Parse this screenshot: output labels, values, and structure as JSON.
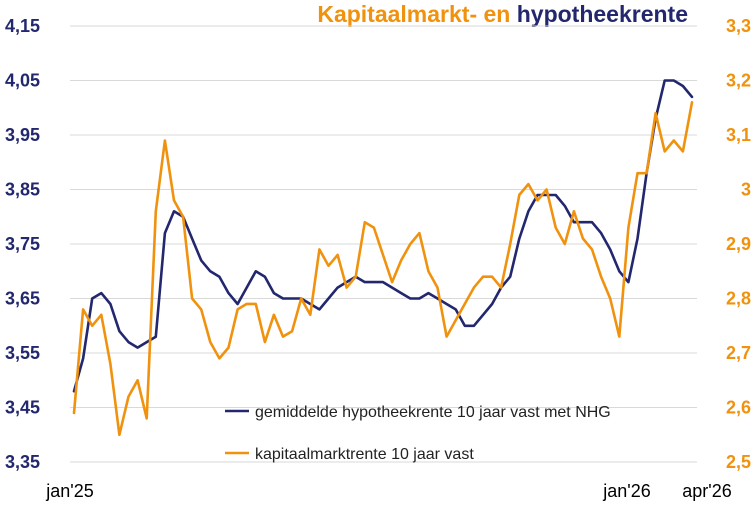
{
  "chart_data": {
    "type": "line",
    "title_parts": [
      "Kapitaalmarkt- en ",
      "hypotheekrente"
    ],
    "xlabel": "",
    "x_tick_labels": [
      "jan'25",
      "jan'26",
      "apr'26"
    ],
    "y_left": {
      "ylim": [
        3.35,
        4.15
      ],
      "ticks": [
        "3,35",
        "3,45",
        "3,55",
        "3,65",
        "3,75",
        "3,85",
        "3,95",
        "4,05",
        "4,15"
      ]
    },
    "y_right": {
      "ylim": [
        2.5,
        3.3
      ],
      "ticks": [
        "2,5",
        "2,6",
        "2,7",
        "2,8",
        "2,9",
        "3",
        "3,1",
        "3,2",
        "3,3"
      ]
    },
    "grid": "horizontal",
    "legend_position": "bottom-center",
    "colors": {
      "navy": "#22276e",
      "orange": "#f0920e",
      "grid": "#d9d9d9"
    },
    "series": [
      {
        "name": "gemiddelde hypotheekrente 10 jaar vast met NHG",
        "axis": "left",
        "color": "#22276e",
        "values": [
          3.48,
          3.54,
          3.65,
          3.66,
          3.64,
          3.59,
          3.57,
          3.56,
          3.57,
          3.58,
          3.77,
          3.81,
          3.8,
          3.76,
          3.72,
          3.7,
          3.69,
          3.66,
          3.64,
          3.67,
          3.7,
          3.69,
          3.66,
          3.65,
          3.65,
          3.65,
          3.64,
          3.63,
          3.65,
          3.67,
          3.68,
          3.69,
          3.68,
          3.68,
          3.68,
          3.67,
          3.66,
          3.65,
          3.65,
          3.66,
          3.65,
          3.64,
          3.63,
          3.6,
          3.6,
          3.62,
          3.64,
          3.67,
          3.69,
          3.76,
          3.81,
          3.84,
          3.84,
          3.84,
          3.82,
          3.79,
          3.79,
          3.79,
          3.77,
          3.74,
          3.7,
          3.68,
          3.76,
          3.88,
          3.98,
          4.05,
          4.05,
          4.04,
          4.02
        ]
      },
      {
        "name": "kapitaalmarktrente 10 jaar vast",
        "axis": "right",
        "color": "#f0920e",
        "values": [
          2.59,
          2.78,
          2.75,
          2.77,
          2.68,
          2.55,
          2.62,
          2.65,
          2.58,
          2.96,
          3.09,
          2.98,
          2.95,
          2.8,
          2.78,
          2.72,
          2.69,
          2.71,
          2.78,
          2.79,
          2.79,
          2.72,
          2.77,
          2.73,
          2.74,
          2.8,
          2.77,
          2.89,
          2.86,
          2.88,
          2.82,
          2.84,
          2.94,
          2.93,
          2.88,
          2.83,
          2.87,
          2.9,
          2.92,
          2.85,
          2.82,
          2.73,
          2.76,
          2.79,
          2.82,
          2.84,
          2.84,
          2.82,
          2.9,
          2.99,
          3.01,
          2.98,
          3.0,
          2.93,
          2.9,
          2.96,
          2.91,
          2.89,
          2.84,
          2.8,
          2.73,
          2.93,
          3.03,
          3.03,
          3.14,
          3.07,
          3.09,
          3.07,
          3.16
        ]
      }
    ]
  }
}
